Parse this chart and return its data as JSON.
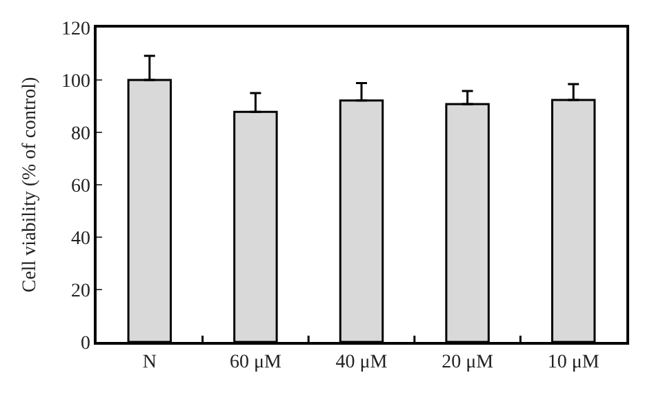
{
  "chart_data": {
    "type": "bar",
    "ylabel": "Cell viability (% of control)",
    "categories": [
      "N",
      "60 μM",
      "40 μM",
      "20 μM",
      "10 μM"
    ],
    "values": [
      100,
      87.8,
      92.2,
      90.8,
      92.4
    ],
    "errors": [
      [
        100,
        109.2
      ],
      [
        87.8,
        95.0
      ],
      [
        92.2,
        98.8
      ],
      [
        90.8,
        95.8
      ],
      [
        92.4,
        98.4
      ]
    ],
    "color": "#d9d9d9",
    "ylim": [
      0,
      120
    ],
    "yticks": [
      0,
      20,
      40,
      60,
      80,
      100,
      120
    ]
  }
}
